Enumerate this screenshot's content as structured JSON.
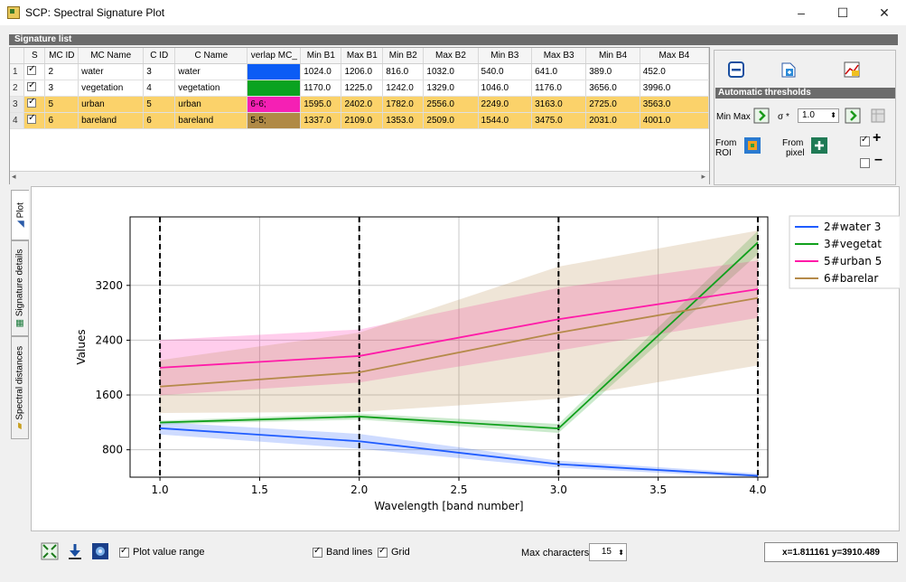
{
  "window": {
    "title": "SCP: Spectral Signature Plot",
    "minimize": "–",
    "maximize": "☐",
    "close": "✕"
  },
  "signature_list": {
    "header": "Signature list",
    "columns": [
      "",
      "S",
      "MC ID",
      "MC Name",
      "C ID",
      "C Name",
      "verlap MC_",
      "Min B1",
      "Max B1",
      "Min B2",
      "Max B2",
      "Min B3",
      "Max B3",
      "Min B4",
      "Max B4"
    ],
    "rows": [
      {
        "n": "1",
        "s": true,
        "mc_id": "2",
        "mc_name": "water",
        "c_id": "3",
        "c_name": "water",
        "overlap": "",
        "color": "#0b5cf5",
        "min_b1": "1024.0",
        "max_b1": "1206.0",
        "min_b2": "816.0",
        "max_b2": "1032.0",
        "min_b3": "540.0",
        "max_b3": "641.0",
        "min_b4": "389.0",
        "max_b4": "452.0",
        "selected": false
      },
      {
        "n": "2",
        "s": true,
        "mc_id": "3",
        "mc_name": "vegetation",
        "c_id": "4",
        "c_name": "vegetation",
        "overlap": "",
        "color": "#0aa320",
        "min_b1": "1170.0",
        "max_b1": "1225.0",
        "min_b2": "1242.0",
        "max_b2": "1329.0",
        "min_b3": "1046.0",
        "max_b3": "1176.0",
        "min_b4": "3656.0",
        "max_b4": "3996.0",
        "selected": false
      },
      {
        "n": "3",
        "s": true,
        "mc_id": "5",
        "mc_name": "urban",
        "c_id": "5",
        "c_name": "urban",
        "overlap": "6-6;",
        "color": "#f520b4",
        "min_b1": "1595.0",
        "max_b1": "2402.0",
        "min_b2": "1782.0",
        "max_b2": "2556.0",
        "min_b3": "2249.0",
        "max_b3": "3163.0",
        "min_b4": "2725.0",
        "max_b4": "3563.0",
        "selected": true
      },
      {
        "n": "4",
        "s": true,
        "mc_id": "6",
        "mc_name": "bareland",
        "c_id": "6",
        "c_name": "bareland",
        "overlap": "5-5;",
        "color": "#b08a45",
        "min_b1": "1337.0",
        "max_b1": "2109.0",
        "min_b2": "1353.0",
        "max_b2": "2509.0",
        "min_b3": "1544.0",
        "max_b3": "3475.0",
        "min_b4": "2031.0",
        "max_b4": "4001.0",
        "selected": true
      }
    ]
  },
  "tools": {
    "auto_thresholds": "Automatic thresholds",
    "min_max": "Min Max",
    "sigma": "σ *",
    "sigma_value": "1.0",
    "from_roi": [
      "From",
      "ROI"
    ],
    "from_pixel": [
      "From",
      "pixel"
    ],
    "plus": "+",
    "minus": "–"
  },
  "tabs": [
    {
      "label": "Plot",
      "icon": "plot-icon",
      "active": true
    },
    {
      "label": "Signature details",
      "icon": "table-icon",
      "active": false
    },
    {
      "label": "Spectral distances",
      "icon": "ruler-icon",
      "active": false
    }
  ],
  "bottom_bar": {
    "plot_value_range": "Plot value range",
    "band_lines": "Band lines",
    "grid": "Grid",
    "max_characters": "Max characters",
    "max_characters_value": "15",
    "coordinates": "x=1.811161 y=3910.489"
  },
  "chart_data": {
    "type": "line",
    "xlabel": "Wavelength [band number]",
    "ylabel": "Values",
    "xlim": [
      0.85,
      4.05
    ],
    "ylim": [
      400,
      4200
    ],
    "xticks": [
      "1.0",
      "1.5",
      "2.0",
      "2.5",
      "3.0",
      "3.5",
      "4.0"
    ],
    "yticks": [
      "800",
      "1600",
      "2400",
      "3200"
    ],
    "x": [
      1,
      2,
      3,
      4
    ],
    "band_lines": [
      1,
      2,
      3,
      4
    ],
    "grid": true,
    "legend": "top-right",
    "series": [
      {
        "name": "2#water 3",
        "color": "#1f5cff",
        "values": [
          1115,
          924,
          590,
          420
        ],
        "min": [
          1024,
          816,
          540,
          389
        ],
        "max": [
          1206,
          1032,
          641,
          452
        ]
      },
      {
        "name": "3#vegetat",
        "color": "#10a01c",
        "values": [
          1198,
          1285,
          1111,
          3826
        ],
        "min": [
          1170,
          1242,
          1046,
          3656
        ],
        "max": [
          1225,
          1329,
          1176,
          3996
        ]
      },
      {
        "name": "5#urban 5",
        "color": "#ff1aa8",
        "values": [
          1998,
          2169,
          2706,
          3144
        ],
        "min": [
          1595,
          1782,
          2249,
          2725
        ],
        "max": [
          2402,
          2556,
          3163,
          3563
        ]
      },
      {
        "name": "6#barelar",
        "color": "#b58a4a",
        "values": [
          1723,
          1931,
          2510,
          3016
        ],
        "min": [
          1337,
          1353,
          1544,
          2031
        ],
        "max": [
          2109,
          2509,
          3475,
          4001
        ]
      }
    ]
  }
}
